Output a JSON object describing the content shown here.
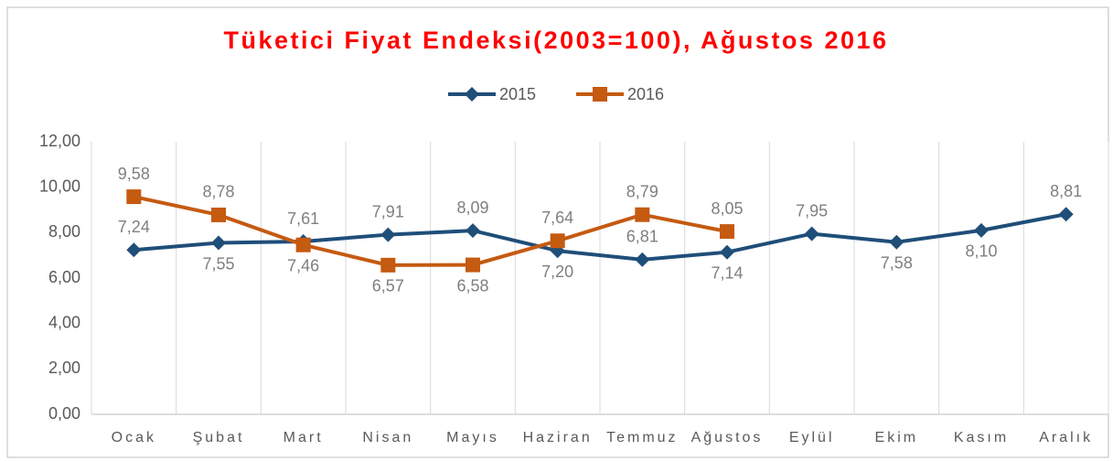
{
  "chart_data": {
    "type": "line",
    "title": "Tüketici Fiyat Endeksi(2003=100), Ağustos 2016",
    "categories": [
      "Ocak",
      "Şubat",
      "Mart",
      "Nisan",
      "Mayıs",
      "Haziran",
      "Temmuz",
      "Ağustos",
      "Eylül",
      "Ekim",
      "Kasım",
      "Aralık"
    ],
    "series": [
      {
        "name": "2015",
        "color": "#1f4e79",
        "marker": "diamond",
        "values": [
          7.24,
          7.55,
          7.61,
          7.91,
          8.09,
          7.2,
          6.81,
          7.14,
          7.95,
          7.58,
          8.1,
          8.81
        ],
        "value_labels": [
          "7,24",
          "7,55",
          "7,61",
          "7,91",
          "8,09",
          "7,20",
          "6,81",
          "7,14",
          "7,95",
          "7,58",
          "8,10",
          "8,81"
        ]
      },
      {
        "name": "2016",
        "color": "#c55a11",
        "marker": "square",
        "values": [
          9.58,
          8.78,
          7.46,
          6.57,
          6.58,
          7.64,
          8.79,
          8.05,
          null,
          null,
          null,
          null
        ],
        "value_labels": [
          "9,58",
          "8,78",
          "7,46",
          "6,57",
          "6,58",
          "7,64",
          "8,79",
          "8,05",
          null,
          null,
          null,
          null
        ]
      }
    ],
    "ylim": [
      0,
      12
    ],
    "yticks": [
      {
        "value": 0,
        "label": "0,00"
      },
      {
        "value": 2,
        "label": "2,00"
      },
      {
        "value": 4,
        "label": "4,00"
      },
      {
        "value": 6,
        "label": "6,00"
      },
      {
        "value": 8,
        "label": "8,00"
      },
      {
        "value": 10,
        "label": "10,00"
      },
      {
        "value": 12,
        "label": "12,00"
      }
    ],
    "legend": "top"
  }
}
